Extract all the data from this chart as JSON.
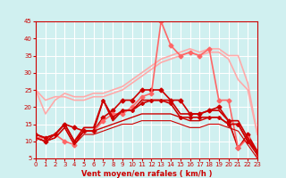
{
  "bg_color": "#d0f0f0",
  "grid_color": "#ffffff",
  "xlabel": "Vent moyen/en rafales ( km/h )",
  "xlabel_color": "#cc0000",
  "tick_label_color": "#cc0000",
  "xlim": [
    0,
    23
  ],
  "ylim": [
    5,
    45
  ],
  "yticks": [
    5,
    10,
    15,
    20,
    25,
    30,
    35,
    40,
    45
  ],
  "xticks": [
    0,
    1,
    2,
    3,
    4,
    5,
    6,
    7,
    8,
    9,
    10,
    11,
    12,
    13,
    14,
    15,
    16,
    17,
    18,
    19,
    20,
    21,
    22,
    23
  ],
  "series": [
    {
      "x": [
        0,
        1,
        2,
        3,
        4,
        5,
        6,
        7,
        8,
        9,
        10,
        11,
        12,
        13,
        14,
        15,
        16,
        17,
        18,
        19,
        20,
        21,
        22,
        23
      ],
      "y": [
        25,
        18,
        22,
        24,
        23,
        23,
        24,
        24,
        25,
        26,
        28,
        30,
        32,
        34,
        35,
        36,
        37,
        36,
        37,
        37,
        35,
        35,
        27,
        12
      ],
      "color": "#ffaaaa",
      "lw": 1.2,
      "marker": null
    },
    {
      "x": [
        0,
        1,
        2,
        3,
        4,
        5,
        6,
        7,
        8,
        9,
        10,
        11,
        12,
        13,
        14,
        15,
        16,
        17,
        18,
        19,
        20,
        21,
        22,
        23
      ],
      "y": [
        25,
        22,
        23,
        23,
        22,
        22,
        23,
        23,
        24,
        25,
        27,
        29,
        31,
        33,
        34,
        35,
        36,
        35,
        36,
        36,
        34,
        28,
        25,
        12
      ],
      "color": "#ffaaaa",
      "lw": 1.2,
      "marker": null
    },
    {
      "x": [
        0,
        1,
        2,
        3,
        4,
        5,
        6,
        7,
        8,
        9,
        10,
        11,
        12,
        13,
        14,
        15,
        16,
        17,
        18,
        19,
        20,
        21,
        22,
        23
      ],
      "y": [
        11,
        10,
        12,
        15,
        14,
        13,
        13,
        17,
        19,
        22,
        22,
        25,
        25,
        25,
        22,
        22,
        18,
        18,
        19,
        20,
        16,
        8,
        12,
        7
      ],
      "color": "#cc0000",
      "lw": 1.2,
      "marker": "D",
      "ms": 2.5
    },
    {
      "x": [
        0,
        1,
        2,
        3,
        4,
        5,
        6,
        7,
        8,
        9,
        10,
        11,
        12,
        13,
        14,
        15,
        16,
        17,
        18,
        19,
        20,
        21,
        22,
        23
      ],
      "y": [
        11,
        11,
        12,
        10,
        9,
        13,
        13,
        16,
        18,
        18,
        20,
        23,
        24,
        45,
        38,
        35,
        36,
        35,
        37,
        22,
        22,
        8,
        11,
        6
      ],
      "color": "#ff6666",
      "lw": 1.2,
      "marker": "D",
      "ms": 2.5
    },
    {
      "x": [
        0,
        1,
        2,
        3,
        4,
        5,
        6,
        7,
        8,
        9,
        10,
        11,
        12,
        13,
        14,
        15,
        16,
        17,
        18,
        19,
        20,
        21,
        22,
        23
      ],
      "y": [
        12,
        11,
        12,
        15,
        10,
        14,
        14,
        22,
        16,
        19,
        19,
        22,
        22,
        22,
        22,
        18,
        18,
        18,
        19,
        19,
        16,
        16,
        11,
        7
      ],
      "color": "#cc0000",
      "lw": 1.2,
      "marker": null
    },
    {
      "x": [
        0,
        1,
        2,
        3,
        4,
        5,
        6,
        7,
        8,
        9,
        10,
        11,
        12,
        13,
        14,
        15,
        16,
        17,
        18,
        19,
        20,
        21,
        22,
        23
      ],
      "y": [
        11,
        10,
        11,
        14,
        9,
        13,
        13,
        14,
        15,
        16,
        17,
        18,
        18,
        18,
        18,
        17,
        16,
        16,
        17,
        17,
        15,
        15,
        10,
        6
      ],
      "color": "#cc0000",
      "lw": 1.0,
      "marker": null
    },
    {
      "x": [
        0,
        1,
        2,
        3,
        4,
        5,
        6,
        7,
        8,
        9,
        10,
        11,
        12,
        13,
        14,
        15,
        16,
        17,
        18,
        19,
        20,
        21,
        22,
        23
      ],
      "y": [
        11,
        10,
        11,
        14,
        9,
        12,
        12,
        13,
        14,
        15,
        15,
        16,
        16,
        16,
        16,
        15,
        14,
        14,
        15,
        15,
        14,
        13,
        9,
        5
      ],
      "color": "#cc0000",
      "lw": 0.8,
      "marker": null
    },
    {
      "x": [
        0,
        1,
        2,
        3,
        4,
        5,
        6,
        7,
        8,
        9,
        10,
        11,
        12,
        13,
        14,
        15,
        16,
        17,
        18,
        19,
        20,
        21,
        22,
        23
      ],
      "y": [
        12,
        11,
        12,
        15,
        10,
        13,
        13,
        22,
        17,
        19,
        19,
        21,
        22,
        22,
        21,
        17,
        17,
        17,
        17,
        17,
        15,
        15,
        10,
        7
      ],
      "color": "#cc0000",
      "lw": 1.2,
      "marker": "D",
      "ms": 2.0
    }
  ],
  "arrow_color": "#cc0000"
}
